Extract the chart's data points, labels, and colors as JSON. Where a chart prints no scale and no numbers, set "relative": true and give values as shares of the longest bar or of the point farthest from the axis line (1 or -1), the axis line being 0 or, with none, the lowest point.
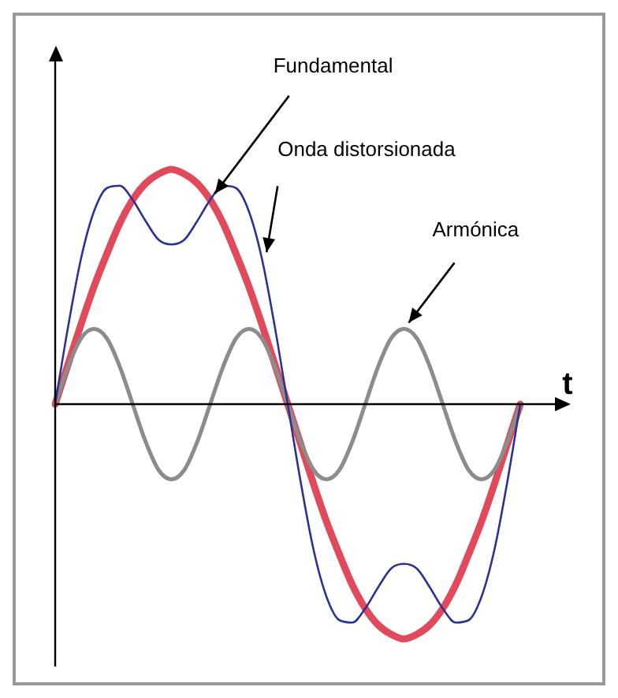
{
  "chart_data": {
    "type": "line",
    "relative": true,
    "xlabel": "t",
    "categories": [
      null,
      null,
      null,
      null,
      null,
      null,
      null,
      null,
      null,
      null,
      null,
      null,
      null,
      null,
      null,
      null,
      null,
      null,
      null,
      null,
      null,
      null,
      null,
      null,
      null,
      null,
      null,
      null,
      null,
      null,
      null,
      null,
      null,
      null,
      null,
      null,
      null
    ],
    "series": [
      {
        "name": "Fundamental",
        "color": "#e04a5a",
        "values": [
          0,
          0.17,
          0.34,
          0.5,
          0.64,
          0.77,
          0.87,
          0.94,
          0.98,
          1,
          0.98,
          0.94,
          0.87,
          0.77,
          0.64,
          0.5,
          0.34,
          0.17,
          0,
          -0.17,
          -0.34,
          -0.5,
          -0.64,
          -0.77,
          -0.87,
          -0.94,
          -0.98,
          -1,
          -0.98,
          -0.94,
          -0.87,
          -0.77,
          -0.64,
          -0.5,
          -0.34,
          -0.17,
          0
        ]
      },
      {
        "name": "Onda distorsionada",
        "color": "#2e3192",
        "values": [
          0,
          0.33,
          0.62,
          0.82,
          0.92,
          0.93,
          0.87,
          0.78,
          0.7,
          0.68,
          0.7,
          0.78,
          0.87,
          0.93,
          0.92,
          0.82,
          0.62,
          0.33,
          0,
          -0.33,
          -0.62,
          -0.82,
          -0.92,
          -0.93,
          -0.87,
          -0.78,
          -0.7,
          -0.68,
          -0.7,
          -0.78,
          -0.87,
          -0.93,
          -0.92,
          -0.82,
          -0.62,
          -0.33,
          0
        ]
      },
      {
        "name": "Armónica",
        "color": "#8c8c8c",
        "values": [
          0,
          0.16,
          0.28,
          0.32,
          0.28,
          0.16,
          0,
          -0.16,
          -0.28,
          -0.32,
          -0.28,
          -0.16,
          0,
          0.16,
          0.28,
          0.32,
          0.28,
          0.16,
          0,
          -0.16,
          -0.28,
          -0.32,
          -0.28,
          -0.16,
          0,
          0.16,
          0.28,
          0.32,
          0.28,
          0.16,
          0,
          -0.16,
          -0.28,
          -0.32,
          -0.28,
          -0.16,
          0
        ]
      }
    ],
    "legend": false,
    "marker": "none",
    "line_style": "solid"
  }
}
